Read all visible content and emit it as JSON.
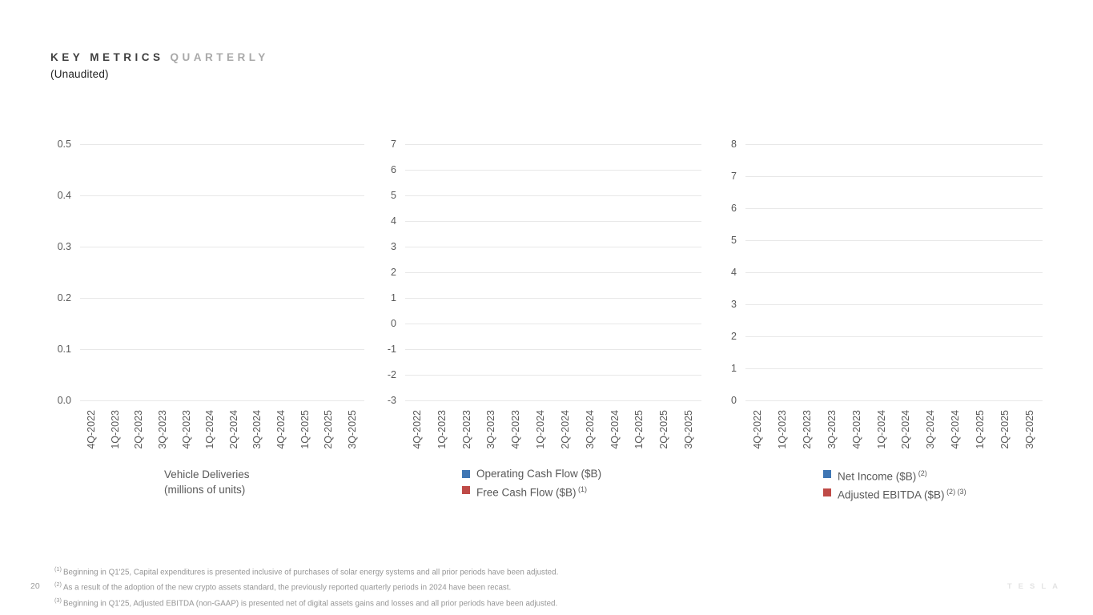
{
  "header": {
    "title_primary": "KEY METRICS",
    "title_secondary": "QUARTERLY",
    "subtitle": "(Unaudited)"
  },
  "chart_data": [
    {
      "type": "bar",
      "title": "Vehicle Deliveries (millions of units)",
      "title_lines": [
        "Vehicle Deliveries",
        "(millions of units)"
      ],
      "categories": [
        "4Q-2022",
        "1Q-2023",
        "2Q-2023",
        "3Q-2023",
        "4Q-2023",
        "1Q-2024",
        "2Q-2024",
        "3Q-2024",
        "4Q-2024",
        "1Q-2025",
        "2Q-2025",
        "3Q-2025"
      ],
      "series": [],
      "ylim": [
        0.0,
        0.5
      ],
      "ytick_labels": [
        "0.5",
        "0.4",
        "0.3",
        "0.2",
        "0.1",
        "0.0"
      ],
      "grid": true,
      "legend": [],
      "note": "axes and gridlines only - no data bars are rendered in the screenshot"
    },
    {
      "type": "bar",
      "title": "",
      "categories": [
        "4Q-2022",
        "1Q-2023",
        "2Q-2023",
        "3Q-2023",
        "4Q-2023",
        "1Q-2024",
        "2Q-2024",
        "3Q-2024",
        "4Q-2024",
        "1Q-2025",
        "2Q-2025",
        "3Q-2025"
      ],
      "series": [
        {
          "name": "Operating Cash Flow ($B)",
          "sup": "",
          "color": "#3F76B4",
          "values": []
        },
        {
          "name": "Free Cash Flow ($B)",
          "sup": "(1)",
          "color": "#BF4A47",
          "values": []
        }
      ],
      "ylim": [
        -3,
        7
      ],
      "ytick_labels": [
        "7",
        "6",
        "5",
        "4",
        "3",
        "2",
        "1",
        "0",
        "-1",
        "-2",
        "-3"
      ],
      "grid": true,
      "legend_position": "bottom",
      "note": "axes and gridlines only - no data bars are rendered in the screenshot"
    },
    {
      "type": "bar",
      "title": "",
      "categories": [
        "4Q-2022",
        "1Q-2023",
        "2Q-2023",
        "3Q-2023",
        "4Q-2023",
        "1Q-2024",
        "2Q-2024",
        "3Q-2024",
        "4Q-2024",
        "1Q-2025",
        "2Q-2025",
        "3Q-2025"
      ],
      "series": [
        {
          "name": "Net Income ($B)",
          "sup": "(2)",
          "color": "#3F76B4",
          "values": []
        },
        {
          "name": "Adjusted EBITDA ($B)",
          "sup": "(2) (3)",
          "color": "#BF4A47",
          "values": []
        }
      ],
      "ylim": [
        0,
        8
      ],
      "ytick_labels": [
        "8",
        "7",
        "6",
        "5",
        "4",
        "3",
        "2",
        "1",
        "0"
      ],
      "grid": true,
      "legend_position": "bottom",
      "note": "axes and gridlines only - no data bars are rendered in the screenshot"
    }
  ],
  "footnotes": [
    {
      "sup": "(1)",
      "text": "Beginning in Q1'25, Capital expenditures is presented inclusive of purchases of solar energy systems and all prior periods have been adjusted."
    },
    {
      "sup": "(2)",
      "text": "As a result of the adoption of the new crypto assets standard, the previously reported quarterly periods in 2024 have been recast."
    },
    {
      "sup": "(3)",
      "text": "Beginning in Q1'25, Adjusted EBITDA (non-GAAP) is presented net of digital assets gains and losses and all prior periods have been adjusted."
    }
  ],
  "footer": {
    "page_number": "20",
    "logo_text": "TESLA"
  },
  "colors": {
    "series_blue": "#3F76B4",
    "series_red": "#BF4A47",
    "gridline": "#E8E8E8",
    "axis_text": "#595959",
    "muted_text": "#969696",
    "title_primary": "#3F3F3F",
    "title_secondary": "#A9A9A9"
  }
}
